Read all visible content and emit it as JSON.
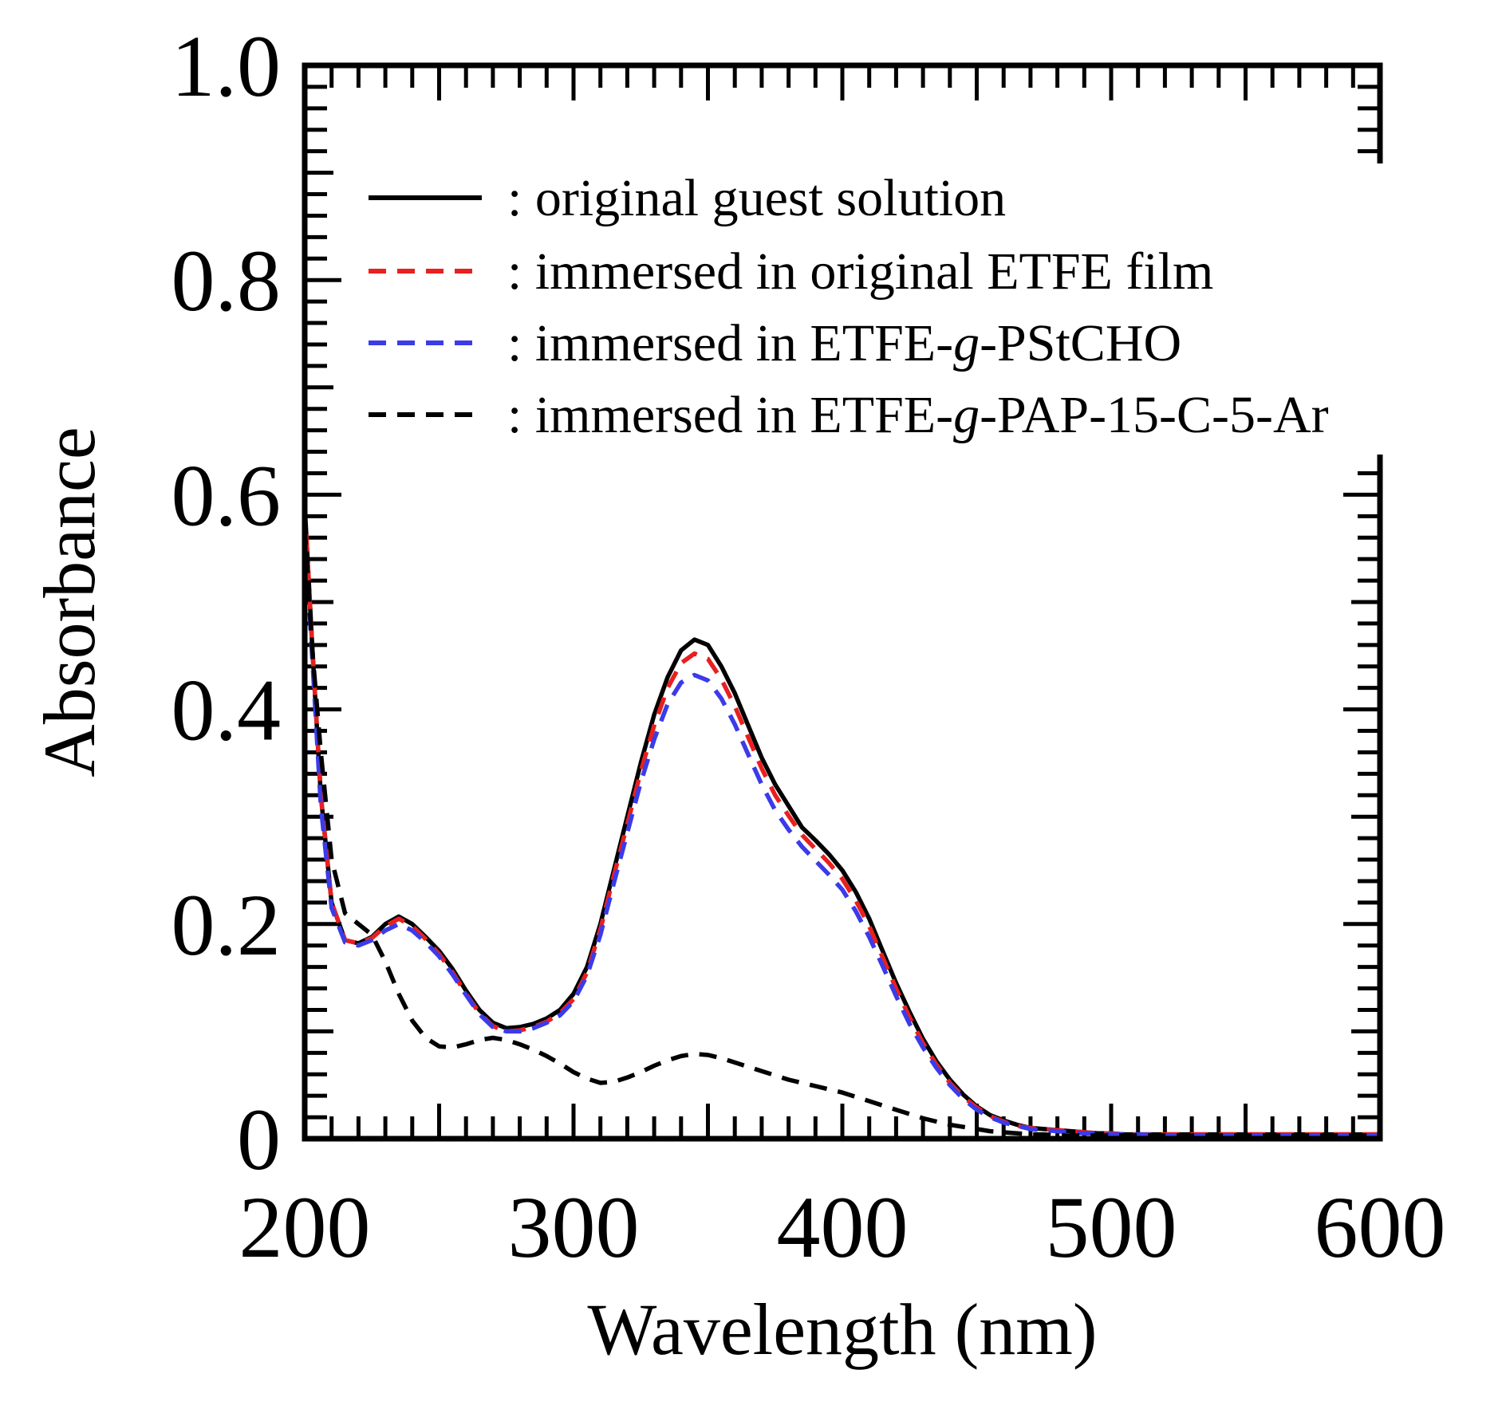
{
  "chart_data": {
    "type": "line",
    "title": "",
    "xlabel": "Wavelength (nm)",
    "ylabel": "Absorbance",
    "xlim": [
      200,
      600
    ],
    "ylim": [
      0,
      1.0
    ],
    "x_ticks": [
      200,
      300,
      400,
      500,
      600
    ],
    "x_tick_labels": [
      "200",
      "300",
      "400",
      "500",
      "600"
    ],
    "y_ticks": [
      0,
      0.2,
      0.4,
      0.6,
      0.8,
      1.0
    ],
    "y_tick_labels": [
      "0",
      "0.2",
      "0.4",
      "0.6",
      "0.8",
      "1.0"
    ],
    "grid": false,
    "legend_position": "top-right",
    "series": [
      {
        "name": "original guest solution",
        "legend_label": ": original guest solution",
        "color": "#000000",
        "style": "solid",
        "x": [
          200,
          203,
          206,
          210,
          215,
          220,
          225,
          230,
          235,
          240,
          245,
          250,
          255,
          260,
          265,
          270,
          275,
          280,
          285,
          290,
          295,
          300,
          305,
          310,
          315,
          320,
          325,
          330,
          335,
          340,
          345,
          350,
          355,
          360,
          365,
          370,
          375,
          380,
          385,
          390,
          395,
          400,
          405,
          410,
          415,
          420,
          425,
          430,
          435,
          440,
          445,
          450,
          455,
          460,
          465,
          470,
          475,
          480,
          485,
          490,
          495,
          500,
          505,
          510,
          520,
          530,
          540,
          560,
          580,
          600
        ],
        "y": [
          0.59,
          0.45,
          0.32,
          0.22,
          0.185,
          0.182,
          0.188,
          0.2,
          0.207,
          0.2,
          0.188,
          0.175,
          0.158,
          0.138,
          0.12,
          0.108,
          0.103,
          0.104,
          0.107,
          0.112,
          0.12,
          0.135,
          0.16,
          0.2,
          0.25,
          0.3,
          0.35,
          0.395,
          0.43,
          0.455,
          0.465,
          0.46,
          0.44,
          0.415,
          0.385,
          0.355,
          0.33,
          0.31,
          0.29,
          0.278,
          0.265,
          0.25,
          0.23,
          0.205,
          0.175,
          0.145,
          0.118,
          0.093,
          0.072,
          0.055,
          0.041,
          0.03,
          0.022,
          0.017,
          0.013,
          0.01,
          0.009,
          0.008,
          0.007,
          0.006,
          0.005,
          0.005,
          0.004,
          0.004,
          0.004,
          0.004,
          0.004,
          0.004,
          0.004,
          0.004
        ]
      },
      {
        "name": "immersed in original ETFE film",
        "legend_label": ": immersed in original ETFE film",
        "color": "#e82020",
        "style": "dashed",
        "x": [
          200,
          203,
          206,
          210,
          215,
          220,
          225,
          230,
          235,
          240,
          245,
          250,
          255,
          260,
          265,
          270,
          275,
          280,
          285,
          290,
          295,
          300,
          305,
          310,
          315,
          320,
          325,
          330,
          335,
          340,
          345,
          350,
          355,
          360,
          365,
          370,
          375,
          380,
          385,
          390,
          395,
          400,
          405,
          410,
          415,
          420,
          425,
          430,
          435,
          440,
          445,
          450,
          455,
          460,
          465,
          470,
          475,
          480,
          485,
          490,
          495,
          500,
          505,
          510,
          520,
          530,
          540,
          560,
          580,
          600
        ],
        "y": [
          0.59,
          0.45,
          0.32,
          0.22,
          0.185,
          0.182,
          0.187,
          0.198,
          0.205,
          0.198,
          0.186,
          0.172,
          0.155,
          0.135,
          0.117,
          0.105,
          0.1,
          0.101,
          0.104,
          0.109,
          0.117,
          0.13,
          0.155,
          0.195,
          0.245,
          0.293,
          0.342,
          0.385,
          0.42,
          0.443,
          0.452,
          0.447,
          0.428,
          0.403,
          0.374,
          0.345,
          0.32,
          0.301,
          0.283,
          0.27,
          0.257,
          0.242,
          0.222,
          0.198,
          0.169,
          0.14,
          0.113,
          0.089,
          0.069,
          0.052,
          0.039,
          0.029,
          0.021,
          0.016,
          0.012,
          0.01,
          0.009,
          0.008,
          0.007,
          0.006,
          0.005,
          0.005,
          0.004,
          0.004,
          0.004,
          0.004,
          0.004,
          0.004,
          0.004,
          0.004
        ]
      },
      {
        "name": "immersed in ETFE-g-PStCHO",
        "legend_label": ": immersed in ETFE-g-PStCHO",
        "color": "#3b3be8",
        "style": "dashed",
        "x": [
          200,
          203,
          206,
          210,
          215,
          220,
          225,
          230,
          235,
          240,
          245,
          250,
          255,
          260,
          265,
          270,
          275,
          280,
          285,
          290,
          295,
          300,
          305,
          310,
          315,
          320,
          325,
          330,
          335,
          340,
          345,
          350,
          355,
          360,
          365,
          370,
          375,
          380,
          385,
          390,
          395,
          400,
          405,
          410,
          415,
          420,
          425,
          430,
          435,
          440,
          445,
          450,
          455,
          460,
          465,
          470,
          475,
          480,
          485,
          490,
          495,
          500,
          505,
          510,
          520,
          530,
          540,
          560,
          580,
          600
        ],
        "y": [
          0.57,
          0.44,
          0.31,
          0.215,
          0.183,
          0.18,
          0.185,
          0.194,
          0.2,
          0.194,
          0.183,
          0.17,
          0.153,
          0.134,
          0.116,
          0.104,
          0.1,
          0.1,
          0.103,
          0.108,
          0.115,
          0.128,
          0.152,
          0.19,
          0.238,
          0.285,
          0.332,
          0.372,
          0.405,
          0.425,
          0.432,
          0.427,
          0.41,
          0.386,
          0.358,
          0.33,
          0.306,
          0.288,
          0.272,
          0.259,
          0.246,
          0.232,
          0.212,
          0.188,
          0.161,
          0.133,
          0.107,
          0.085,
          0.066,
          0.05,
          0.037,
          0.027,
          0.02,
          0.015,
          0.012,
          0.009,
          0.008,
          0.007,
          0.006,
          0.005,
          0.005,
          0.004,
          0.004,
          0.004,
          0.003,
          0.003,
          0.003,
          0.003,
          0.003,
          0.003
        ]
      },
      {
        "name": "immersed in ETFE-g-PAP-15-C-5-Ar",
        "legend_label": ": immersed in ETFE-g-PAP-15-C-5-Ar",
        "color": "#000000",
        "style": "dashed",
        "x": [
          200,
          203,
          206,
          210,
          215,
          220,
          225,
          230,
          235,
          240,
          245,
          250,
          255,
          260,
          265,
          270,
          275,
          280,
          285,
          290,
          295,
          300,
          305,
          310,
          315,
          320,
          325,
          330,
          335,
          340,
          345,
          350,
          355,
          360,
          365,
          370,
          375,
          380,
          385,
          390,
          395,
          400,
          405,
          410,
          415,
          420,
          425,
          430,
          435,
          440,
          445,
          450,
          455,
          460,
          465,
          470,
          475,
          480,
          485,
          490,
          495,
          500,
          505,
          510,
          520,
          530,
          540,
          560,
          580,
          600
        ],
        "y": [
          0.57,
          0.45,
          0.36,
          0.26,
          0.21,
          0.2,
          0.19,
          0.165,
          0.135,
          0.11,
          0.094,
          0.086,
          0.085,
          0.088,
          0.092,
          0.094,
          0.092,
          0.088,
          0.083,
          0.077,
          0.07,
          0.062,
          0.056,
          0.052,
          0.053,
          0.057,
          0.062,
          0.068,
          0.073,
          0.077,
          0.079,
          0.078,
          0.075,
          0.071,
          0.067,
          0.063,
          0.059,
          0.055,
          0.052,
          0.049,
          0.046,
          0.043,
          0.039,
          0.035,
          0.031,
          0.027,
          0.023,
          0.019,
          0.016,
          0.013,
          0.011,
          0.009,
          0.007,
          0.006,
          0.005,
          0.004,
          0.004,
          0.003,
          0.003,
          0.003,
          0.003,
          0.003,
          0.003,
          0.003,
          0.003,
          0.003,
          0.003,
          0.003,
          0.003,
          0.003
        ]
      }
    ]
  }
}
